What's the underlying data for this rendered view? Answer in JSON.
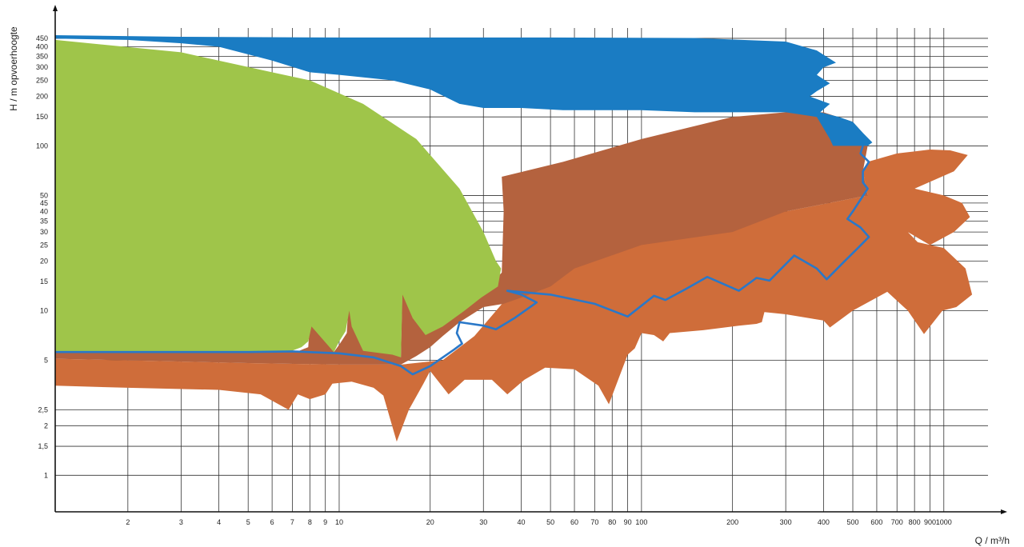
{
  "chart_data": {
    "type": "area",
    "ylabel": "H / m opvoerhoogte",
    "xlabel": "Q / m³/h",
    "x_scale": "log",
    "y_scale": "log",
    "xlim": [
      1.15,
      1400
    ],
    "ylim": [
      0.6,
      520
    ],
    "grid": true,
    "x_ticks": [
      2,
      3,
      4,
      5,
      6,
      7,
      8,
      9,
      10,
      20,
      30,
      40,
      50,
      60,
      70,
      80,
      90,
      100,
      200,
      300,
      400,
      500,
      600,
      700,
      800,
      900,
      1000
    ],
    "x_tick_labels": [
      "2",
      "3",
      "4",
      "5",
      "6",
      "7",
      "8",
      "9",
      "10",
      "20",
      "30",
      "40",
      "50",
      "60",
      "70",
      "80",
      "90",
      "100",
      "200",
      "300",
      "400",
      "500",
      "600",
      "700",
      "800",
      "900",
      "1000"
    ],
    "y_ticks": [
      1,
      1.5,
      2,
      2.5,
      5,
      10,
      15,
      20,
      25,
      30,
      35,
      40,
      45,
      50,
      100,
      150,
      200,
      250,
      300,
      350,
      400,
      450
    ],
    "y_tick_labels": [
      "1",
      "1,5",
      "2",
      "2,5",
      "5",
      "10",
      "15",
      "20",
      "25",
      "30",
      "35",
      "40",
      "45",
      "50",
      "100",
      "150",
      "200",
      "250",
      "300",
      "350",
      "400",
      "450"
    ],
    "colors": {
      "orange": "#cf6d3a",
      "brown": "#b4623e",
      "green": "#9fc54a",
      "blue": "#1a7cc3",
      "outline": "#2a78c8"
    },
    "regions": [
      {
        "color": "orange",
        "points": [
          [
            1.15,
            3.5
          ],
          [
            2,
            3.4
          ],
          [
            4,
            3.3
          ],
          [
            5.5,
            3.1
          ],
          [
            6.8,
            2.5
          ],
          [
            7.3,
            3.1
          ],
          [
            8,
            2.9
          ],
          [
            9,
            3.1
          ],
          [
            9.5,
            3.6
          ],
          [
            11,
            3.7
          ],
          [
            13,
            3.4
          ],
          [
            14,
            3.05
          ],
          [
            15.5,
            1.6
          ],
          [
            17,
            2.5
          ],
          [
            19,
            3.6
          ],
          [
            20,
            4.3
          ],
          [
            23,
            3.1
          ],
          [
            26,
            3.8
          ],
          [
            32,
            3.8
          ],
          [
            36,
            3.1
          ],
          [
            41,
            3.8
          ],
          [
            48,
            4.5
          ],
          [
            60,
            4.4
          ],
          [
            72,
            3.5
          ],
          [
            78,
            2.7
          ],
          [
            90,
            5.4
          ],
          [
            95,
            5.9
          ],
          [
            100,
            7.3
          ],
          [
            110,
            7.1
          ],
          [
            118,
            6.5
          ],
          [
            124,
            7.3
          ],
          [
            160,
            7.6
          ],
          [
            210,
            8.1
          ],
          [
            240,
            8.3
          ],
          [
            250,
            8.5
          ],
          [
            255,
            9.8
          ],
          [
            300,
            9.5
          ],
          [
            400,
            8.7
          ],
          [
            420,
            7.9
          ],
          [
            500,
            10
          ],
          [
            650,
            13
          ],
          [
            760,
            10
          ],
          [
            860,
            7.2
          ],
          [
            990,
            10
          ],
          [
            1100,
            10.5
          ],
          [
            1240,
            12.5
          ],
          [
            1180,
            18
          ],
          [
            1000,
            24
          ],
          [
            820,
            26
          ],
          [
            760,
            30
          ],
          [
            900,
            25
          ],
          [
            1080,
            30
          ],
          [
            1220,
            37
          ],
          [
            1150,
            45
          ],
          [
            1000,
            50
          ],
          [
            800,
            55
          ],
          [
            1080,
            70
          ],
          [
            1200,
            88
          ],
          [
            1050,
            94
          ],
          [
            900,
            95
          ],
          [
            700,
            90
          ],
          [
            560,
            80
          ],
          [
            540,
            70
          ],
          [
            560,
            50
          ],
          [
            300,
            40
          ],
          [
            100,
            30
          ],
          [
            36,
            12
          ],
          [
            28,
            7
          ],
          [
            22,
            5
          ],
          [
            16,
            4.7
          ],
          [
            10,
            4.7
          ],
          [
            5,
            4.8
          ],
          [
            1.15,
            5.1
          ]
        ]
      },
      {
        "color": "brown",
        "points": [
          [
            1.15,
            12.5
          ],
          [
            1.5,
            11
          ],
          [
            2,
            8
          ],
          [
            2.4,
            5.6
          ],
          [
            3,
            5.6
          ],
          [
            3.05,
            8.8
          ],
          [
            3.25,
            10
          ],
          [
            3.27,
            20
          ],
          [
            4,
            16
          ],
          [
            5,
            11
          ],
          [
            6.8,
            5.6
          ],
          [
            7.2,
            5.6
          ],
          [
            7.9,
            6
          ],
          [
            8.1,
            12
          ],
          [
            9,
            8
          ],
          [
            9.6,
            5.6
          ],
          [
            10,
            6.2
          ],
          [
            10.6,
            7.3
          ],
          [
            10.7,
            10
          ],
          [
            10.9,
            16.5
          ],
          [
            12,
            12
          ],
          [
            14,
            8
          ],
          [
            16,
            5.2
          ],
          [
            16.2,
            14.5
          ],
          [
            18,
            9
          ],
          [
            19.5,
            7.2
          ],
          [
            21,
            8
          ],
          [
            21.3,
            20
          ],
          [
            21,
            30
          ],
          [
            24,
            25
          ],
          [
            28,
            16
          ],
          [
            30,
            13
          ],
          [
            34.5,
            17
          ],
          [
            35,
            40
          ],
          [
            34.5,
            65
          ],
          [
            55,
            80
          ],
          [
            100,
            110
          ],
          [
            200,
            150
          ],
          [
            300,
            160
          ],
          [
            400,
            160
          ],
          [
            500,
            140
          ],
          [
            550,
            115
          ],
          [
            560,
            100
          ],
          [
            540,
            70
          ],
          [
            560,
            50
          ],
          [
            300,
            40
          ],
          [
            200,
            30
          ],
          [
            100,
            25
          ],
          [
            60,
            18
          ],
          [
            50,
            14
          ],
          [
            40,
            12
          ],
          [
            35,
            11
          ],
          [
            30,
            10.5
          ],
          [
            25,
            8.5
          ],
          [
            22,
            7
          ],
          [
            20,
            6
          ],
          [
            18,
            5.3
          ],
          [
            16,
            4.7
          ],
          [
            10,
            4.7
          ],
          [
            5,
            4.8
          ],
          [
            1.15,
            5.1
          ]
        ]
      },
      {
        "color": "green",
        "points": [
          [
            1.15,
            440
          ],
          [
            3,
            370
          ],
          [
            6,
            280
          ],
          [
            8,
            250
          ],
          [
            12,
            180
          ],
          [
            18,
            110
          ],
          [
            25,
            55
          ],
          [
            30,
            30
          ],
          [
            33,
            20
          ],
          [
            34.3,
            18
          ],
          [
            33.5,
            14
          ],
          [
            29.5,
            12
          ],
          [
            26,
            10
          ],
          [
            22,
            8
          ],
          [
            19.3,
            7.1
          ],
          [
            17.5,
            9
          ],
          [
            16.2,
            12.5
          ],
          [
            16,
            5.2
          ],
          [
            15,
            5.4
          ],
          [
            12,
            5.7
          ],
          [
            11,
            8
          ],
          [
            10.8,
            10
          ],
          [
            10.5,
            7.5
          ],
          [
            10,
            6.5
          ],
          [
            9.6,
            5.6
          ],
          [
            8.1,
            8
          ],
          [
            7.9,
            6.5
          ],
          [
            7.5,
            6
          ],
          [
            6.8,
            5.6
          ],
          [
            6,
            5.6
          ],
          [
            5,
            5.6
          ],
          [
            4.5,
            5.6
          ],
          [
            3.3,
            5.6
          ],
          [
            2.4,
            5.6
          ],
          [
            1.15,
            5.6
          ]
        ]
      },
      {
        "color": "blue",
        "points": [
          [
            1.15,
            470
          ],
          [
            3,
            460
          ],
          [
            10,
            455
          ],
          [
            50,
            455
          ],
          [
            150,
            452
          ],
          [
            300,
            430
          ],
          [
            380,
            380
          ],
          [
            440,
            320
          ],
          [
            400,
            300
          ],
          [
            380,
            270
          ],
          [
            420,
            240
          ],
          [
            380,
            215
          ],
          [
            360,
            200
          ],
          [
            420,
            180
          ],
          [
            390,
            160
          ],
          [
            450,
            150
          ],
          [
            500,
            140
          ],
          [
            540,
            120
          ],
          [
            580,
            105
          ],
          [
            560,
            100
          ],
          [
            430,
            100
          ],
          [
            420,
            110
          ],
          [
            380,
            150
          ],
          [
            300,
            160
          ],
          [
            150,
            160
          ],
          [
            100,
            165
          ],
          [
            55,
            165
          ],
          [
            40,
            170
          ],
          [
            30,
            170
          ],
          [
            25,
            180
          ],
          [
            20,
            220
          ],
          [
            15,
            250
          ],
          [
            10,
            270
          ],
          [
            8,
            280
          ],
          [
            6,
            330
          ],
          [
            4,
            400
          ],
          [
            3,
            420
          ],
          [
            2,
            440
          ],
          [
            1.15,
            448
          ]
        ]
      }
    ],
    "outline": [
      [
        1.15,
        5.6
      ],
      [
        3,
        5.6
      ],
      [
        5,
        5.6
      ],
      [
        7,
        5.65
      ],
      [
        10,
        5.5
      ],
      [
        13,
        5.2
      ],
      [
        16,
        4.6
      ],
      [
        17.5,
        4.1
      ],
      [
        20,
        4.6
      ],
      [
        24,
        5.8
      ],
      [
        25.5,
        6.3
      ],
      [
        24.5,
        7.3
      ],
      [
        25,
        8.5
      ],
      [
        30,
        8.1
      ],
      [
        33,
        7.7
      ],
      [
        38,
        9
      ],
      [
        45,
        11.2
      ],
      [
        40,
        12.5
      ],
      [
        36,
        13.2
      ],
      [
        50,
        12.5
      ],
      [
        70,
        11
      ],
      [
        90,
        9.2
      ],
      [
        110,
        12.3
      ],
      [
        120,
        11.6
      ],
      [
        140,
        13.5
      ],
      [
        165,
        16
      ],
      [
        210,
        13.2
      ],
      [
        240,
        15.8
      ],
      [
        265,
        15.2
      ],
      [
        320,
        21.6
      ],
      [
        380,
        18
      ],
      [
        410,
        15.5
      ],
      [
        470,
        20
      ],
      [
        520,
        24
      ],
      [
        565,
        28
      ],
      [
        530,
        32
      ],
      [
        480,
        36
      ],
      [
        500,
        40
      ],
      [
        560,
        55
      ],
      [
        540,
        60
      ],
      [
        540,
        70
      ],
      [
        565,
        80
      ],
      [
        530,
        90
      ],
      [
        540,
        100
      ]
    ]
  }
}
